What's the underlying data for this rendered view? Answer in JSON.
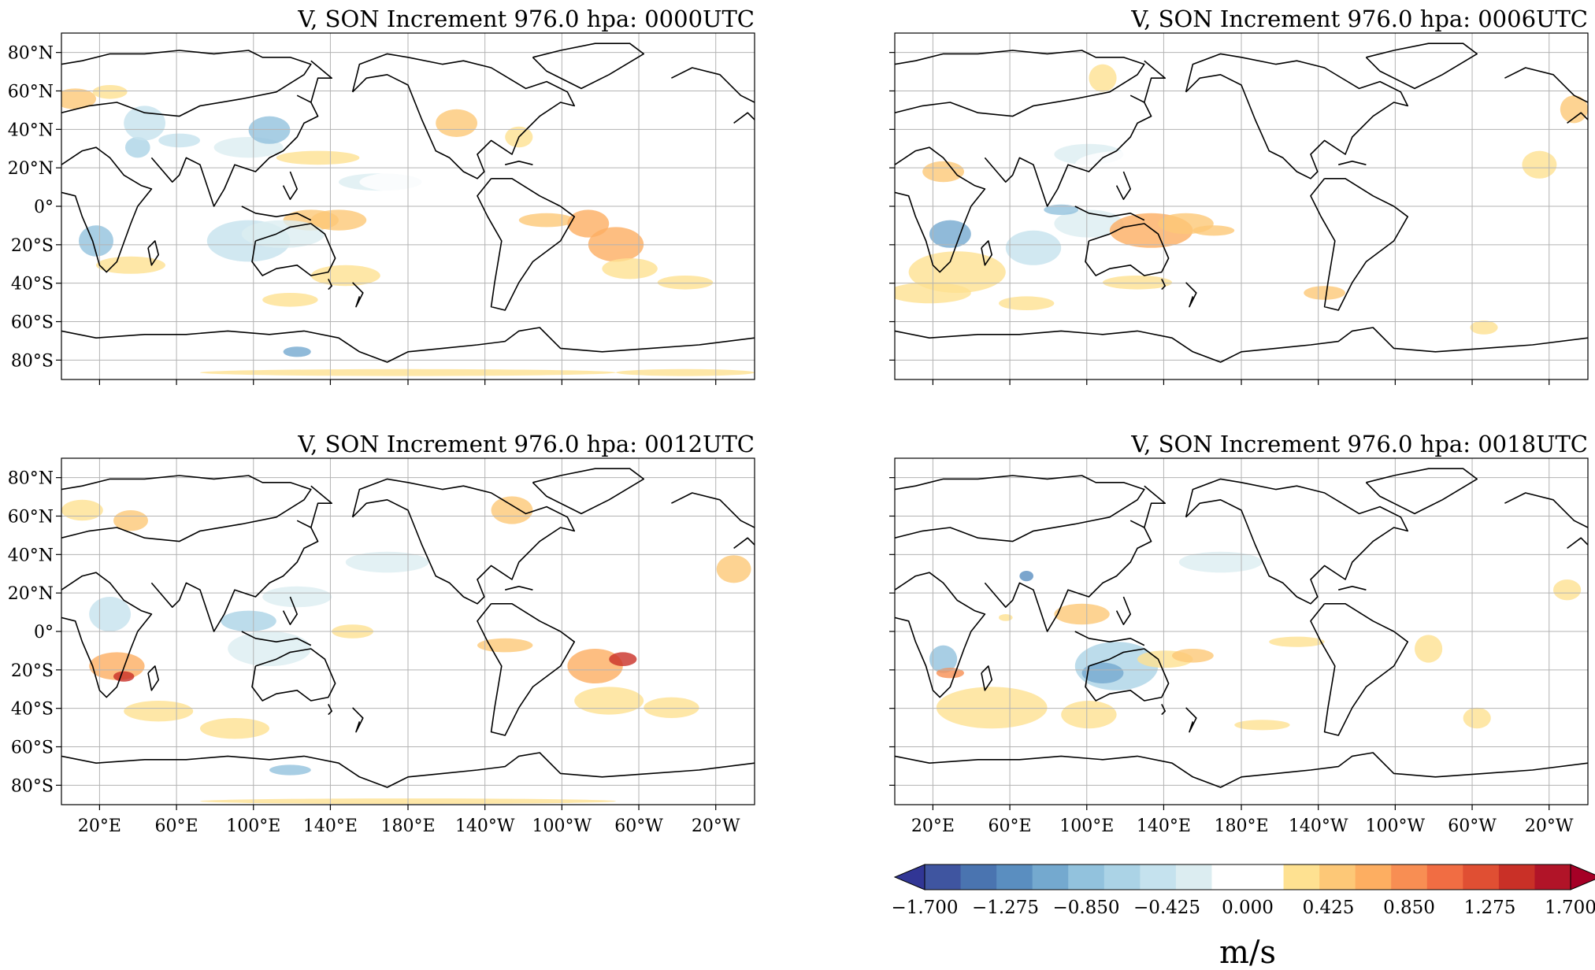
{
  "figure": {
    "panels": [
      {
        "title": "V, SON Increment 976.0 hpa: 0000UTC",
        "show_lon_labels": false,
        "show_lat_labels": true
      },
      {
        "title": "V, SON Increment 976.0 hpa: 0006UTC",
        "show_lon_labels": false,
        "show_lat_labels": false
      },
      {
        "title": "V, SON Increment 976.0 hpa: 0012UTC",
        "show_lon_labels": true,
        "show_lat_labels": true
      },
      {
        "title": "V, SON Increment 976.0 hpa: 0018UTC",
        "show_lon_labels": true,
        "show_lat_labels": false
      }
    ],
    "lat_ticks": [
      "80°N",
      "60°N",
      "40°N",
      "20°N",
      "0°",
      "20°S",
      "40°S",
      "60°S",
      "80°S"
    ],
    "lon_ticks": [
      "20°E",
      "60°E",
      "100°E",
      "140°E",
      "180°E",
      "140°W",
      "100°W",
      "60°W",
      "20°W"
    ],
    "colorbar": {
      "label": "m/s",
      "tick_labels": [
        "−1.700",
        "−1.275",
        "−0.850",
        "−0.425",
        "0.000",
        "0.425",
        "0.850",
        "1.275",
        "1.700"
      ],
      "colors": [
        "#313695",
        "#3f55a0",
        "#4a74b0",
        "#5a8ec0",
        "#74a9cf",
        "#92c2dd",
        "#abd3e6",
        "#c5e2ee",
        "#dcedf1",
        "#ffffff",
        "#ffffff",
        "#fee191",
        "#fdc877",
        "#fdae61",
        "#f88e53",
        "#f16d43",
        "#e04f33",
        "#c93027",
        "#b11428",
        "#a50026"
      ]
    }
  }
}
